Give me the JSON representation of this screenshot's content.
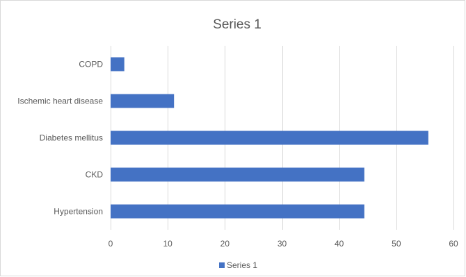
{
  "chart_data": {
    "type": "bar",
    "orientation": "horizontal",
    "title": "Series 1",
    "categories": [
      "COPD",
      "Ischemic heart disease",
      "Diabetes mellitus",
      "CKD",
      "Hypertension"
    ],
    "series": [
      {
        "name": "Series 1",
        "values": [
          2.4,
          11.1,
          55.6,
          44.4,
          44.4
        ]
      }
    ],
    "xlim": [
      0,
      60
    ],
    "xticks": [
      0,
      10,
      20,
      30,
      40,
      50,
      60
    ],
    "xlabel": "",
    "ylabel": "",
    "grid": true,
    "legend_position": "bottom",
    "colors": {
      "bar": "#4472c4",
      "grid": "#d9d9d9",
      "text": "#595959"
    }
  }
}
